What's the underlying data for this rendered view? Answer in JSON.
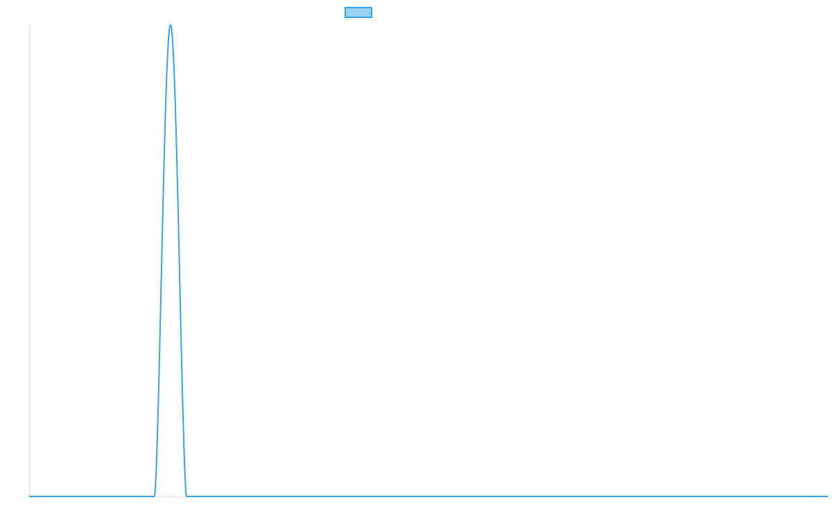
{
  "chart_data": {
    "type": "line",
    "title": "",
    "xlabel": "",
    "ylabel": "",
    "grid": false,
    "legend_placement": "top",
    "x_range": [
      0,
      1
    ],
    "y_range": [
      0,
      1
    ],
    "series": [
      {
        "name": "",
        "color": "#36a2eb",
        "fill_color": "rgba(54,162,235,0.5)",
        "peak_x": 0.177,
        "peak_y": 1.0,
        "start_x": 0.157,
        "end_x": 0.197,
        "baseline_y": 0,
        "points": [
          [
            0.0,
            0
          ],
          [
            0.157,
            0
          ],
          [
            0.162,
            0.3
          ],
          [
            0.167,
            0.7
          ],
          [
            0.172,
            0.95
          ],
          [
            0.177,
            1.0
          ],
          [
            0.182,
            0.95
          ],
          [
            0.187,
            0.7
          ],
          [
            0.192,
            0.3
          ],
          [
            0.197,
            0
          ],
          [
            1.0,
            0
          ]
        ]
      }
    ]
  }
}
